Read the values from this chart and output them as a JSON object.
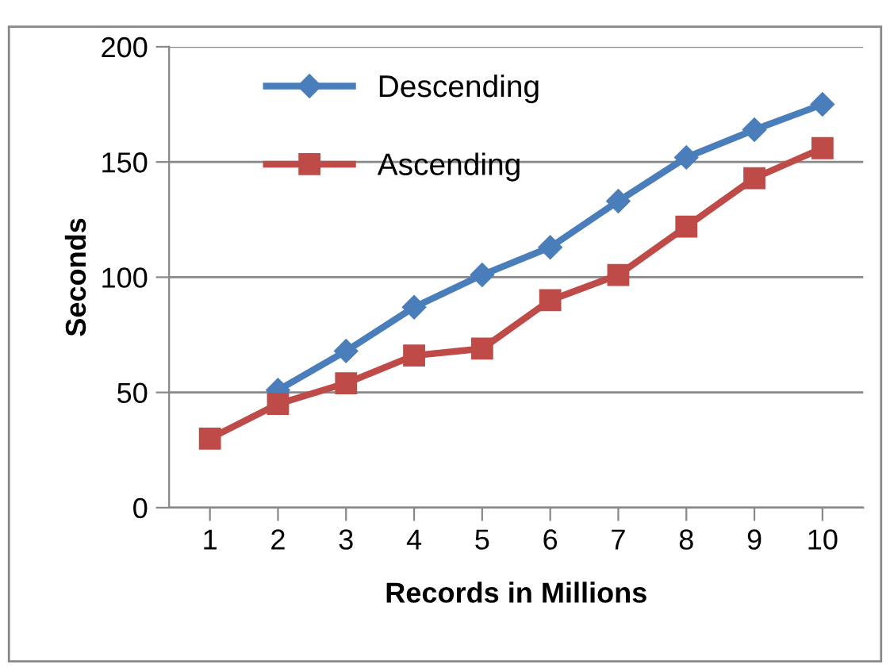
{
  "chart_data": {
    "type": "line",
    "xlabel": "Records in Millions",
    "ylabel": "Seconds",
    "categories": [
      "1",
      "2",
      "3",
      "4",
      "5",
      "6",
      "7",
      "8",
      "9",
      "10"
    ],
    "series": [
      {
        "name": "Descending",
        "color": "#4a7ebb",
        "marker": "diamond",
        "values": [
          null,
          51,
          68,
          87,
          101,
          113,
          133,
          152,
          164,
          175
        ]
      },
      {
        "name": "Ascending",
        "color": "#be4b48",
        "marker": "square",
        "values": [
          30,
          45,
          54,
          66,
          69,
          90,
          101,
          122,
          143,
          156
        ]
      }
    ],
    "ylim": [
      0,
      200
    ],
    "yticks": [
      0,
      50,
      100,
      150,
      200
    ],
    "grid": "y",
    "legend": "top left"
  }
}
